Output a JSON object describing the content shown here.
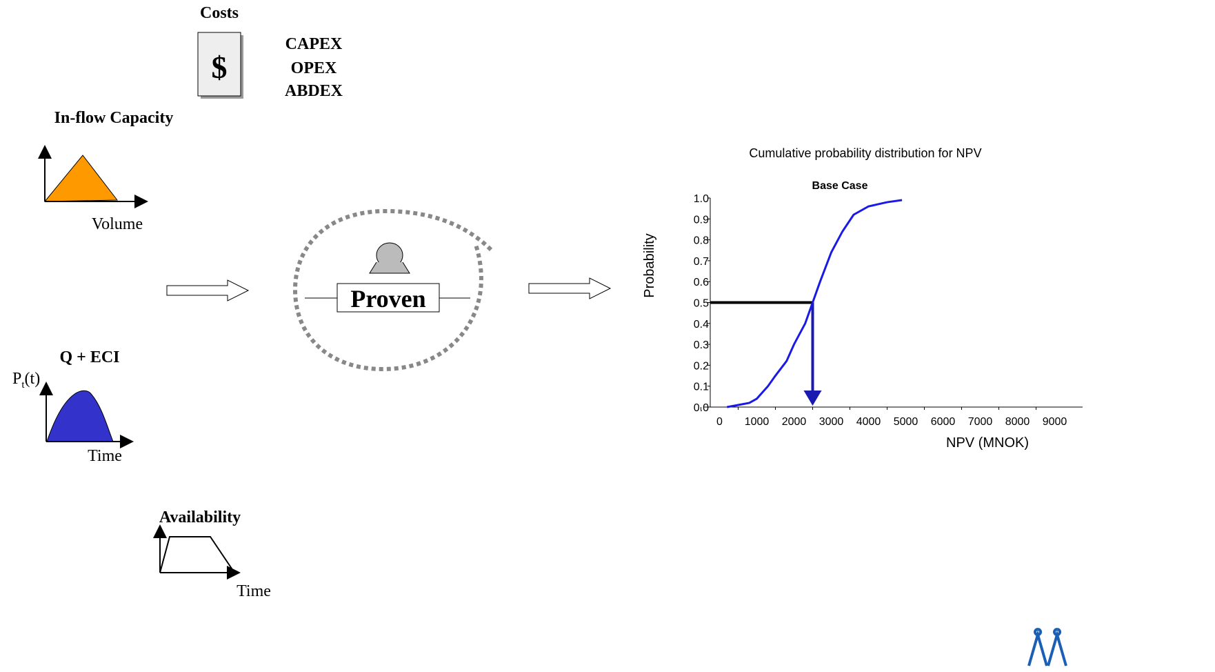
{
  "diagram": {
    "costs": {
      "title": "Costs",
      "icon": "$",
      "items": [
        "CAPEX",
        "OPEX",
        "ABDEX"
      ]
    },
    "inflow": {
      "title": "In-flow Capacity",
      "axis_label": "Volume"
    },
    "qeci": {
      "title": "Q + ECI",
      "y_label": "P",
      "y_label_sub": "t",
      "y_label_rest": "(t)",
      "axis_label": "Time"
    },
    "availability": {
      "title": "Availability",
      "axis_label": "Time"
    },
    "center": {
      "label": "Proven"
    }
  },
  "chart_data": {
    "type": "line",
    "title": "Cumulative probability distribution for NPV",
    "subtitle": "Base Case",
    "x_label": "NPV (MNOK)",
    "y_label": "Probability",
    "x": [
      200,
      500,
      800,
      1000,
      1300,
      1500,
      1800,
      2000,
      2300,
      2500,
      2700,
      3000,
      3300,
      3600,
      4000,
      4500,
      4900
    ],
    "series": [
      {
        "name": "Base Case",
        "color": "#1a1ae6",
        "values": [
          0.0,
          0.01,
          0.02,
          0.04,
          0.1,
          0.15,
          0.22,
          0.3,
          0.4,
          0.5,
          0.6,
          0.74,
          0.84,
          0.92,
          0.96,
          0.98,
          0.99
        ]
      }
    ],
    "reference": {
      "x": 2500,
      "y": 0.5
    },
    "xlim": [
      -250,
      9750
    ],
    "ylim": [
      0,
      1
    ],
    "xticks": [
      0,
      1000,
      2000,
      3000,
      4000,
      5000,
      6000,
      7000,
      8000,
      9000
    ],
    "yticks": [
      {
        "value": 0,
        "label": "0.0"
      },
      0.1,
      0.2,
      0.3,
      0.4,
      0.5,
      0.6,
      0.7,
      0.8,
      0.9,
      {
        "value": 1,
        "label": "1.0"
      }
    ]
  }
}
